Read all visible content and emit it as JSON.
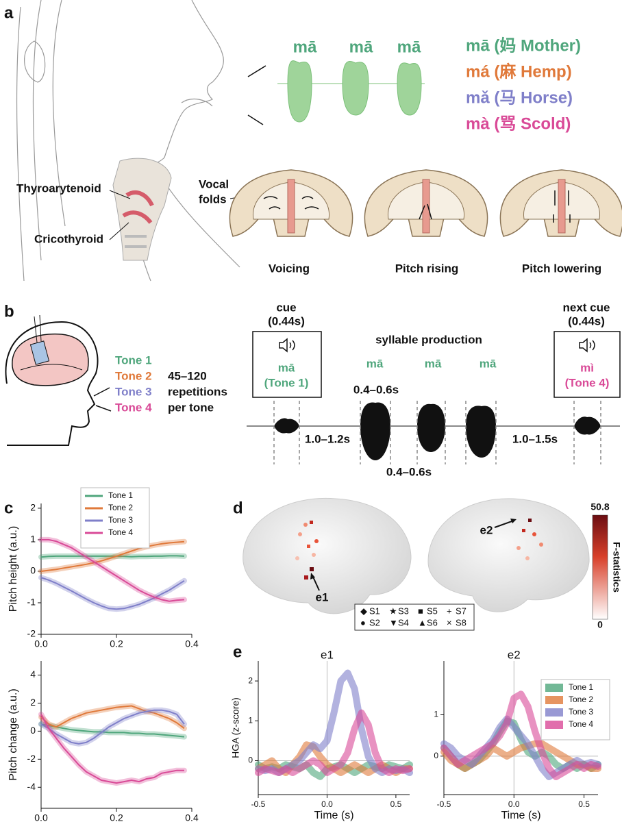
{
  "panel_a": {
    "label": "a",
    "syllables": [
      "mā",
      "mā",
      "mā"
    ],
    "tones": [
      {
        "text": "mā (妈 Mother)",
        "color": "#4fa67c"
      },
      {
        "text": "má (麻 Hemp)",
        "color": "#e0793a"
      },
      {
        "text": "mǎ (马 Horse)",
        "color": "#7f7fc9"
      },
      {
        "text": "mà (骂 Scold)",
        "color": "#d94a97"
      }
    ],
    "muscles": [
      "Thyroarytenoid",
      "Cricothyroid"
    ],
    "vocal_folds_label": [
      "Vocal",
      "folds"
    ],
    "captions": [
      "Voicing",
      "Pitch rising",
      "Pitch lowering"
    ]
  },
  "panel_b": {
    "label": "b",
    "tones": [
      {
        "text": "Tone 1",
        "color": "#4fa67c"
      },
      {
        "text": "Tone 2",
        "color": "#e0793a"
      },
      {
        "text": "Tone 3",
        "color": "#7f7fc9"
      },
      {
        "text": "Tone 4",
        "color": "#d94a97"
      }
    ],
    "repetitions": [
      "45–120",
      "repetitions",
      "per tone"
    ],
    "cue": [
      "cue",
      "(0.44s)"
    ],
    "cue_syllable": [
      "mā",
      "(Tone 1)"
    ],
    "production": "syllable production",
    "production_syllables": [
      "mā",
      "mā",
      "mā"
    ],
    "next_cue": [
      "next cue",
      "(0.44s)"
    ],
    "next_syllable": [
      "mì",
      "(Tone 4)"
    ],
    "durations": [
      "0.4–0.6s",
      "1.0–1.2s",
      "0.4–0.6s",
      "1.0–1.5s"
    ]
  },
  "panel_c": {
    "label": "c"
  },
  "panel_d": {
    "label": "d",
    "electrodes": [
      "e1",
      "e2"
    ],
    "subjects": [
      {
        "marker": "◆",
        "name": "S1"
      },
      {
        "marker": "●",
        "name": "S2"
      },
      {
        "marker": "★",
        "name": "S3"
      },
      {
        "marker": "▼",
        "name": "S4"
      },
      {
        "marker": "■",
        "name": "S5"
      },
      {
        "marker": "▲",
        "name": "S6"
      },
      {
        "marker": "+",
        "name": "S7"
      },
      {
        "marker": "×",
        "name": "S8"
      }
    ],
    "colorbar": {
      "max": "50.8",
      "min": "0",
      "label": "F-statistics"
    }
  },
  "panel_e": {
    "label": "e"
  },
  "chart_data": [
    {
      "type": "line",
      "ylabel": "Pitch height (a.u.)",
      "x": [
        0,
        0.02,
        0.04,
        0.06,
        0.08,
        0.1,
        0.12,
        0.14,
        0.16,
        0.18,
        0.2,
        0.22,
        0.24,
        0.26,
        0.28,
        0.3,
        0.32,
        0.34,
        0.36,
        0.38
      ],
      "xlim": [
        0,
        0.4
      ],
      "xticks": [
        {
          "value": 0,
          "label": "0.0"
        },
        0.2,
        0.4
      ],
      "ylim": [
        -2,
        2.15
      ],
      "yticks": [
        -2,
        -1,
        0,
        1,
        2
      ],
      "legend": "top-center",
      "series": [
        {
          "name": "Tone 1",
          "color": "#4fa67c",
          "values": [
            0.45,
            0.47,
            0.48,
            0.48,
            0.48,
            0.48,
            0.48,
            0.48,
            0.48,
            0.48,
            0.48,
            0.47,
            0.46,
            0.47,
            0.47,
            0.48,
            0.48,
            0.49,
            0.49,
            0.48
          ]
        },
        {
          "name": "Tone 2",
          "color": "#e0793a",
          "values": [
            0,
            0.03,
            0.06,
            0.1,
            0.14,
            0.18,
            0.22,
            0.27,
            0.33,
            0.4,
            0.48,
            0.56,
            0.64,
            0.72,
            0.78,
            0.83,
            0.87,
            0.9,
            0.92,
            0.94
          ]
        },
        {
          "name": "Tone 3",
          "color": "#7f7fc9",
          "values": [
            -0.2,
            -0.28,
            -0.38,
            -0.5,
            -0.62,
            -0.75,
            -0.88,
            -1.0,
            -1.1,
            -1.18,
            -1.2,
            -1.18,
            -1.12,
            -1.05,
            -0.95,
            -0.85,
            -0.72,
            -0.6,
            -0.45,
            -0.3
          ]
        },
        {
          "name": "Tone 4",
          "color": "#d94a97",
          "values": [
            1.0,
            1.0,
            0.95,
            0.85,
            0.75,
            0.6,
            0.45,
            0.3,
            0.15,
            0,
            -0.15,
            -0.3,
            -0.45,
            -0.6,
            -0.72,
            -0.82,
            -0.9,
            -0.95,
            -0.92,
            -0.9
          ]
        }
      ]
    },
    {
      "type": "line",
      "ylabel": "Pitch change (a.u.)",
      "xlabel": "Time (s)",
      "x": [
        0,
        0.02,
        0.04,
        0.06,
        0.08,
        0.1,
        0.12,
        0.14,
        0.16,
        0.18,
        0.2,
        0.22,
        0.24,
        0.26,
        0.28,
        0.3,
        0.32,
        0.34,
        0.36,
        0.38
      ],
      "xlim": [
        0,
        0.4
      ],
      "xticks": [
        {
          "value": 0,
          "label": "0.0"
        },
        0.2,
        0.4
      ],
      "ylim": [
        -5.5,
        5
      ],
      "yticks": [
        -4,
        -2,
        0,
        2,
        4
      ],
      "series": [
        {
          "color": "#4fa67c",
          "values": [
            0.5,
            0.4,
            0.3,
            0.2,
            0.1,
            0.05,
            0,
            -0.05,
            -0.05,
            -0.1,
            -0.1,
            -0.1,
            -0.15,
            -0.15,
            -0.2,
            -0.2,
            -0.25,
            -0.3,
            -0.35,
            -0.4
          ]
        },
        {
          "color": "#e0793a",
          "values": [
            1.0,
            0.5,
            0.3,
            0.6,
            0.9,
            1.1,
            1.3,
            1.4,
            1.5,
            1.6,
            1.7,
            1.75,
            1.8,
            1.6,
            1.4,
            1.3,
            1.1,
            0.9,
            0.6,
            0.2
          ]
        },
        {
          "color": "#7f7fc9",
          "values": [
            0.5,
            0.2,
            -0.2,
            -0.5,
            -0.8,
            -0.9,
            -0.8,
            -0.5,
            -0.1,
            0.3,
            0.6,
            0.9,
            1.1,
            1.3,
            1.4,
            1.5,
            1.5,
            1.4,
            1.2,
            0.5
          ]
        },
        {
          "color": "#d94a97",
          "values": [
            1.2,
            0.2,
            -0.5,
            -1.2,
            -1.8,
            -2.4,
            -2.9,
            -3.2,
            -3.5,
            -3.6,
            -3.7,
            -3.6,
            -3.5,
            -3.6,
            -3.4,
            -3.3,
            -3.0,
            -2.9,
            -2.8,
            -2.8
          ]
        }
      ]
    },
    {
      "type": "band",
      "title": "e1",
      "ylabel": "HGA (z-score)",
      "xlabel": "Time (s)",
      "x": [
        -0.5,
        -0.45,
        -0.4,
        -0.35,
        -0.3,
        -0.25,
        -0.2,
        -0.15,
        -0.1,
        -0.05,
        0,
        0.05,
        0.1,
        0.15,
        0.2,
        0.25,
        0.3,
        0.35,
        0.4,
        0.45,
        0.5,
        0.55,
        0.6
      ],
      "xlim": [
        -0.5,
        0.6
      ],
      "xticks": [
        -0.5,
        {
          "value": 0,
          "label": "0.0"
        },
        0.5
      ],
      "ylim": [
        -0.85,
        2.5
      ],
      "yticks": [
        0,
        1,
        2
      ],
      "series": [
        {
          "color": "#4fa67c",
          "values": [
            -0.1,
            -0.2,
            -0.15,
            -0.2,
            -0.1,
            -0.15,
            -0.2,
            -0.1,
            -0.3,
            -0.4,
            -0.2,
            -0.15,
            -0.1,
            -0.2,
            -0.3,
            -0.2,
            -0.1,
            -0.15,
            -0.2,
            -0.1,
            -0.15,
            -0.2,
            -0.1
          ]
        },
        {
          "color": "#e0793a",
          "values": [
            -0.2,
            -0.1,
            0,
            -0.2,
            -0.3,
            -0.1,
            0.1,
            0.4,
            0.35,
            0.1,
            -0.1,
            -0.2,
            -0.3,
            -0.2,
            -0.1,
            -0.2,
            -0.3,
            -0.2,
            -0.1,
            -0.2,
            -0.3,
            -0.2,
            -0.2
          ]
        },
        {
          "color": "#7f7fc9",
          "values": [
            -0.2,
            -0.25,
            -0.2,
            -0.3,
            -0.2,
            -0.1,
            0,
            0.2,
            0.4,
            0.3,
            0.5,
            1.2,
            2.0,
            2.2,
            1.8,
            0.8,
            0.1,
            -0.2,
            -0.3,
            -0.2,
            -0.25,
            -0.2,
            -0.3
          ]
        },
        {
          "color": "#d94a97",
          "values": [
            -0.3,
            -0.2,
            -0.25,
            -0.3,
            -0.2,
            -0.3,
            -0.2,
            -0.1,
            0,
            -0.1,
            -0.3,
            -0.2,
            -0.1,
            0.2,
            0.8,
            1.2,
            0.9,
            0.2,
            -0.2,
            -0.3,
            -0.2,
            -0.25,
            -0.2
          ]
        }
      ]
    },
    {
      "type": "band",
      "title": "e2",
      "xlabel": "Time (s)",
      "x": [
        -0.5,
        -0.45,
        -0.4,
        -0.35,
        -0.3,
        -0.25,
        -0.2,
        -0.15,
        -0.1,
        -0.05,
        0,
        0.05,
        0.1,
        0.15,
        0.2,
        0.25,
        0.3,
        0.35,
        0.4,
        0.45,
        0.5,
        0.55,
        0.6
      ],
      "xlim": [
        -0.5,
        0.6
      ],
      "xticks": [
        -0.5,
        {
          "value": 0,
          "label": "0.0"
        },
        0.5
      ],
      "ylim": [
        -0.93,
        2.3
      ],
      "yticks": [
        0,
        1
      ],
      "legend": "upper-right",
      "series": [
        {
          "name": "Tone 1",
          "color": "#4fa67c",
          "values": [
            0.2,
            0,
            -0.2,
            -0.3,
            -0.2,
            -0.1,
            0.1,
            0.3,
            0.6,
            0.85,
            0.8,
            0.4,
            0.1,
            0,
            0.1,
            0,
            -0.2,
            -0.3,
            -0.2,
            -0.3,
            -0.2,
            -0.3,
            -0.2
          ]
        },
        {
          "name": "Tone 2",
          "color": "#e0793a",
          "values": [
            0.1,
            -0.1,
            -0.2,
            -0.3,
            -0.2,
            -0.1,
            0,
            0.2,
            0.1,
            0,
            0.1,
            0.2,
            0.25,
            0.3,
            0.3,
            0.2,
            0.1,
            0,
            -0.1,
            -0.2,
            -0.2,
            -0.3,
            -0.3
          ]
        },
        {
          "name": "Tone 3",
          "color": "#7f7fc9",
          "values": [
            0.3,
            0.2,
            0,
            -0.1,
            -0.2,
            0,
            0.2,
            0.4,
            0.7,
            0.9,
            0.7,
            0.5,
            0.3,
            0,
            -0.3,
            -0.5,
            -0.4,
            -0.3,
            -0.2,
            -0.1,
            -0.2,
            -0.15,
            -0.2
          ]
        },
        {
          "name": "Tone 4",
          "color": "#d94a97",
          "values": [
            0.2,
            0,
            -0.2,
            -0.1,
            0,
            0.1,
            0.2,
            0.3,
            0.5,
            0.8,
            1.4,
            1.5,
            1.2,
            0.6,
            0.1,
            -0.3,
            -0.5,
            -0.4,
            -0.3,
            -0.2,
            -0.3,
            -0.2,
            -0.25
          ]
        }
      ]
    }
  ]
}
